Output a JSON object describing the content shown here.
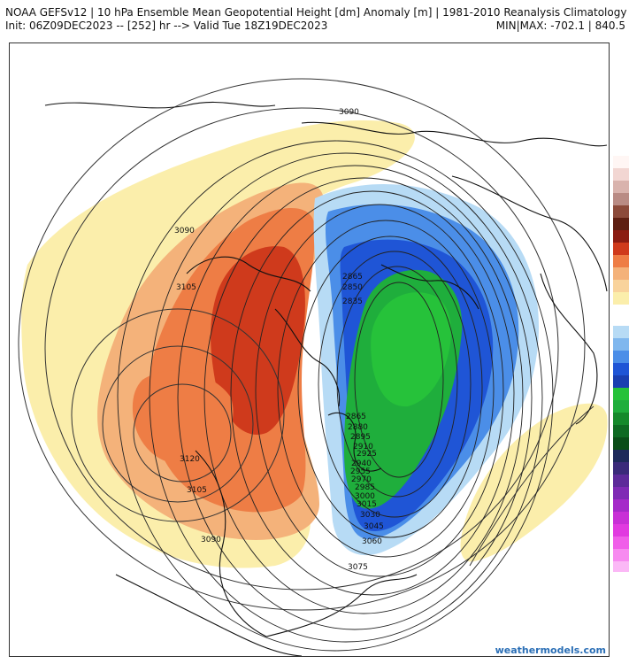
{
  "header": {
    "line1": "NOAA GEFSv12 | 10 hPa Ensemble Mean Geopotential Height [dm] Anomaly [m] | 1981-2010 Reanalysis Climatology",
    "line2": "Init: 06Z09DEC2023 -- [252] hr --> Valid Tue 18Z19DEC2023",
    "minmax": "MIN|MAX: -702.1 | 840.5"
  },
  "footer": {
    "credit": "weathermodels.com"
  },
  "contour_labels": {
    "l3090_top": "3090",
    "l3090_left": "3090",
    "l3105_left": "3105",
    "l3120": "3120",
    "l3105_bottom": "3105",
    "l3090_bottom": "3090",
    "l2865_top": "2865",
    "l2850": "2850",
    "l2835": "2835",
    "l2865_mid": "2865",
    "l2880": "2880",
    "l2895": "2895",
    "l2910": "2910",
    "l2925": "2925",
    "l2940": "2940",
    "l2955": "2955",
    "l2970": "2970",
    "l2985": "2985",
    "l3000": "3000",
    "l3015": "3015",
    "l3030": "3030",
    "l3045": "3045",
    "l3060": "3060",
    "l3075": "3075"
  },
  "colors": {
    "positive_weak": "#fbeeab",
    "positive_mid": "#f4b27a",
    "positive_strong": "#ee7d45",
    "positive_max": "#cf3a1c",
    "negative_weak": "#b7dbf5",
    "negative_mid": "#4b8ee8",
    "negative_strong": "#1f55d6",
    "negative_max_green": "#1fae3c",
    "green_inner": "#26c23a"
  }
}
